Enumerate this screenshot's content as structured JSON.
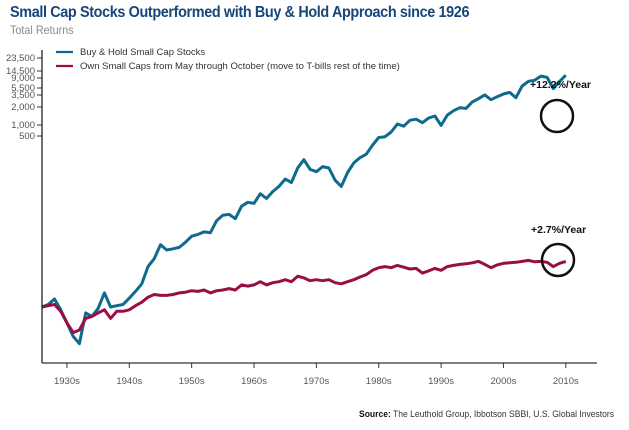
{
  "chart_data": {
    "type": "line",
    "title": "Small Cap Stocks Outperformed with Buy & Hold Approach since 1926",
    "subtitle": "Total Returns",
    "xlabel": "",
    "ylabel": "",
    "y_scale": "log",
    "x_range": [
      1926,
      2015
    ],
    "x_ticks": [
      {
        "label": "1930s",
        "value": 1930
      },
      {
        "label": "1940s",
        "value": 1940
      },
      {
        "label": "1950s",
        "value": 1950
      },
      {
        "label": "1960s",
        "value": 1960
      },
      {
        "label": "1970s",
        "value": 1970
      },
      {
        "label": "1980s",
        "value": 1980
      },
      {
        "label": "1990s",
        "value": 1990
      },
      {
        "label": "2000s",
        "value": 2000
      },
      {
        "label": "2010s",
        "value": 2010
      }
    ],
    "y_ticks": [
      "23,500",
      "14,500",
      "9,000",
      "5,500",
      "3,500",
      "2,000",
      "1,000",
      "500"
    ],
    "legend": {
      "placement": "top-left"
    },
    "series": [
      {
        "name": "Buy & Hold Small Cap Stocks",
        "color": "#0f6a8e",
        "points": [
          [
            1926,
            1.0
          ],
          [
            1927,
            1.1
          ],
          [
            1928,
            1.35
          ],
          [
            1929,
            0.9
          ],
          [
            1930,
            0.55
          ],
          [
            1931,
            0.33
          ],
          [
            1932,
            0.25
          ],
          [
            1933,
            0.8
          ],
          [
            1934,
            0.7
          ],
          [
            1935,
            0.95
          ],
          [
            1936,
            1.7
          ],
          [
            1937,
            1.0
          ],
          [
            1938,
            1.05
          ],
          [
            1939,
            1.1
          ],
          [
            1940,
            1.4
          ],
          [
            1941,
            1.8
          ],
          [
            1942,
            2.4
          ],
          [
            1943,
            4.6
          ],
          [
            1944,
            6.2
          ],
          [
            1945,
            10.5
          ],
          [
            1946,
            8.6
          ],
          [
            1947,
            9.0
          ],
          [
            1948,
            9.5
          ],
          [
            1949,
            11.5
          ],
          [
            1950,
            14.5
          ],
          [
            1951,
            15.5
          ],
          [
            1952,
            17.0
          ],
          [
            1953,
            16.5
          ],
          [
            1954,
            26
          ],
          [
            1955,
            32
          ],
          [
            1956,
            33
          ],
          [
            1957,
            28
          ],
          [
            1958,
            45
          ],
          [
            1959,
            52
          ],
          [
            1960,
            50
          ],
          [
            1961,
            72
          ],
          [
            1962,
            60
          ],
          [
            1963,
            78
          ],
          [
            1964,
            95
          ],
          [
            1965,
            125
          ],
          [
            1966,
            110
          ],
          [
            1967,
            190
          ],
          [
            1968,
            260
          ],
          [
            1969,
            180
          ],
          [
            1970,
            165
          ],
          [
            1971,
            200
          ],
          [
            1972,
            190
          ],
          [
            1973,
            120
          ],
          [
            1974,
            95
          ],
          [
            1975,
            160
          ],
          [
            1976,
            230
          ],
          [
            1977,
            280
          ],
          [
            1978,
            320
          ],
          [
            1979,
            450
          ],
          [
            1980,
            600
          ],
          [
            1981,
            620
          ],
          [
            1982,
            740
          ],
          [
            1983,
            1000
          ],
          [
            1984,
            920
          ],
          [
            1985,
            1150
          ],
          [
            1986,
            1200
          ],
          [
            1987,
            1050
          ],
          [
            1988,
            1250
          ],
          [
            1989,
            1350
          ],
          [
            1990,
            950
          ],
          [
            1991,
            1400
          ],
          [
            1992,
            1650
          ],
          [
            1993,
            1850
          ],
          [
            1994,
            1800
          ],
          [
            1995,
            2300
          ],
          [
            1996,
            2600
          ],
          [
            1997,
            3000
          ],
          [
            1998,
            2500
          ],
          [
            1999,
            2800
          ],
          [
            2000,
            3100
          ],
          [
            2001,
            3300
          ],
          [
            2002,
            2700
          ],
          [
            2003,
            4200
          ],
          [
            2004,
            5000
          ],
          [
            2005,
            5200
          ],
          [
            2006,
            6100
          ],
          [
            2007,
            5800
          ],
          [
            2008,
            3800
          ],
          [
            2009,
            5000
          ],
          [
            2010,
            6300
          ]
        ],
        "annotation": "+12.2%/Year"
      },
      {
        "name": "Own Small Caps from May through October (move to T-bills rest of the time)",
        "color": "#9a0e45",
        "points": [
          [
            1926,
            1.0
          ],
          [
            1927,
            1.05
          ],
          [
            1928,
            1.1
          ],
          [
            1929,
            0.85
          ],
          [
            1930,
            0.55
          ],
          [
            1931,
            0.38
          ],
          [
            1932,
            0.42
          ],
          [
            1933,
            0.65
          ],
          [
            1934,
            0.7
          ],
          [
            1935,
            0.8
          ],
          [
            1936,
            0.9
          ],
          [
            1937,
            0.65
          ],
          [
            1938,
            0.85
          ],
          [
            1939,
            0.85
          ],
          [
            1940,
            0.9
          ],
          [
            1941,
            1.05
          ],
          [
            1942,
            1.2
          ],
          [
            1943,
            1.45
          ],
          [
            1944,
            1.6
          ],
          [
            1945,
            1.55
          ],
          [
            1946,
            1.55
          ],
          [
            1947,
            1.6
          ],
          [
            1948,
            1.7
          ],
          [
            1949,
            1.75
          ],
          [
            1950,
            1.85
          ],
          [
            1951,
            1.8
          ],
          [
            1952,
            1.9
          ],
          [
            1953,
            1.7
          ],
          [
            1954,
            1.85
          ],
          [
            1955,
            1.9
          ],
          [
            1956,
            2.0
          ],
          [
            1957,
            1.9
          ],
          [
            1958,
            2.3
          ],
          [
            1959,
            2.2
          ],
          [
            1960,
            2.3
          ],
          [
            1961,
            2.6
          ],
          [
            1962,
            2.3
          ],
          [
            1963,
            2.5
          ],
          [
            1964,
            2.6
          ],
          [
            1965,
            2.8
          ],
          [
            1966,
            2.6
          ],
          [
            1967,
            3.2
          ],
          [
            1968,
            3.0
          ],
          [
            1969,
            2.7
          ],
          [
            1970,
            2.8
          ],
          [
            1971,
            2.7
          ],
          [
            1972,
            2.8
          ],
          [
            1973,
            2.5
          ],
          [
            1974,
            2.4
          ],
          [
            1975,
            2.6
          ],
          [
            1976,
            2.8
          ],
          [
            1977,
            3.1
          ],
          [
            1978,
            3.4
          ],
          [
            1979,
            4.0
          ],
          [
            1980,
            4.4
          ],
          [
            1981,
            4.6
          ],
          [
            1982,
            4.4
          ],
          [
            1983,
            4.8
          ],
          [
            1984,
            4.5
          ],
          [
            1985,
            4.2
          ],
          [
            1986,
            4.3
          ],
          [
            1987,
            3.6
          ],
          [
            1988,
            3.9
          ],
          [
            1989,
            4.3
          ],
          [
            1990,
            4.0
          ],
          [
            1991,
            4.6
          ],
          [
            1992,
            4.8
          ],
          [
            1993,
            5.0
          ],
          [
            1994,
            5.1
          ],
          [
            1995,
            5.3
          ],
          [
            1996,
            5.6
          ],
          [
            1997,
            5.0
          ],
          [
            1998,
            4.4
          ],
          [
            1999,
            4.9
          ],
          [
            2000,
            5.2
          ],
          [
            2001,
            5.3
          ],
          [
            2002,
            5.4
          ],
          [
            2003,
            5.6
          ],
          [
            2004,
            5.8
          ],
          [
            2005,
            5.5
          ],
          [
            2006,
            5.6
          ],
          [
            2007,
            5.4
          ],
          [
            2008,
            4.6
          ],
          [
            2009,
            5.2
          ],
          [
            2010,
            5.6
          ]
        ],
        "annotation": "+2.7%/Year"
      }
    ]
  },
  "source": {
    "label": "Source:",
    "text": " The Leuthold Group, Ibbotson SBBI, U.S. Global Investors"
  }
}
